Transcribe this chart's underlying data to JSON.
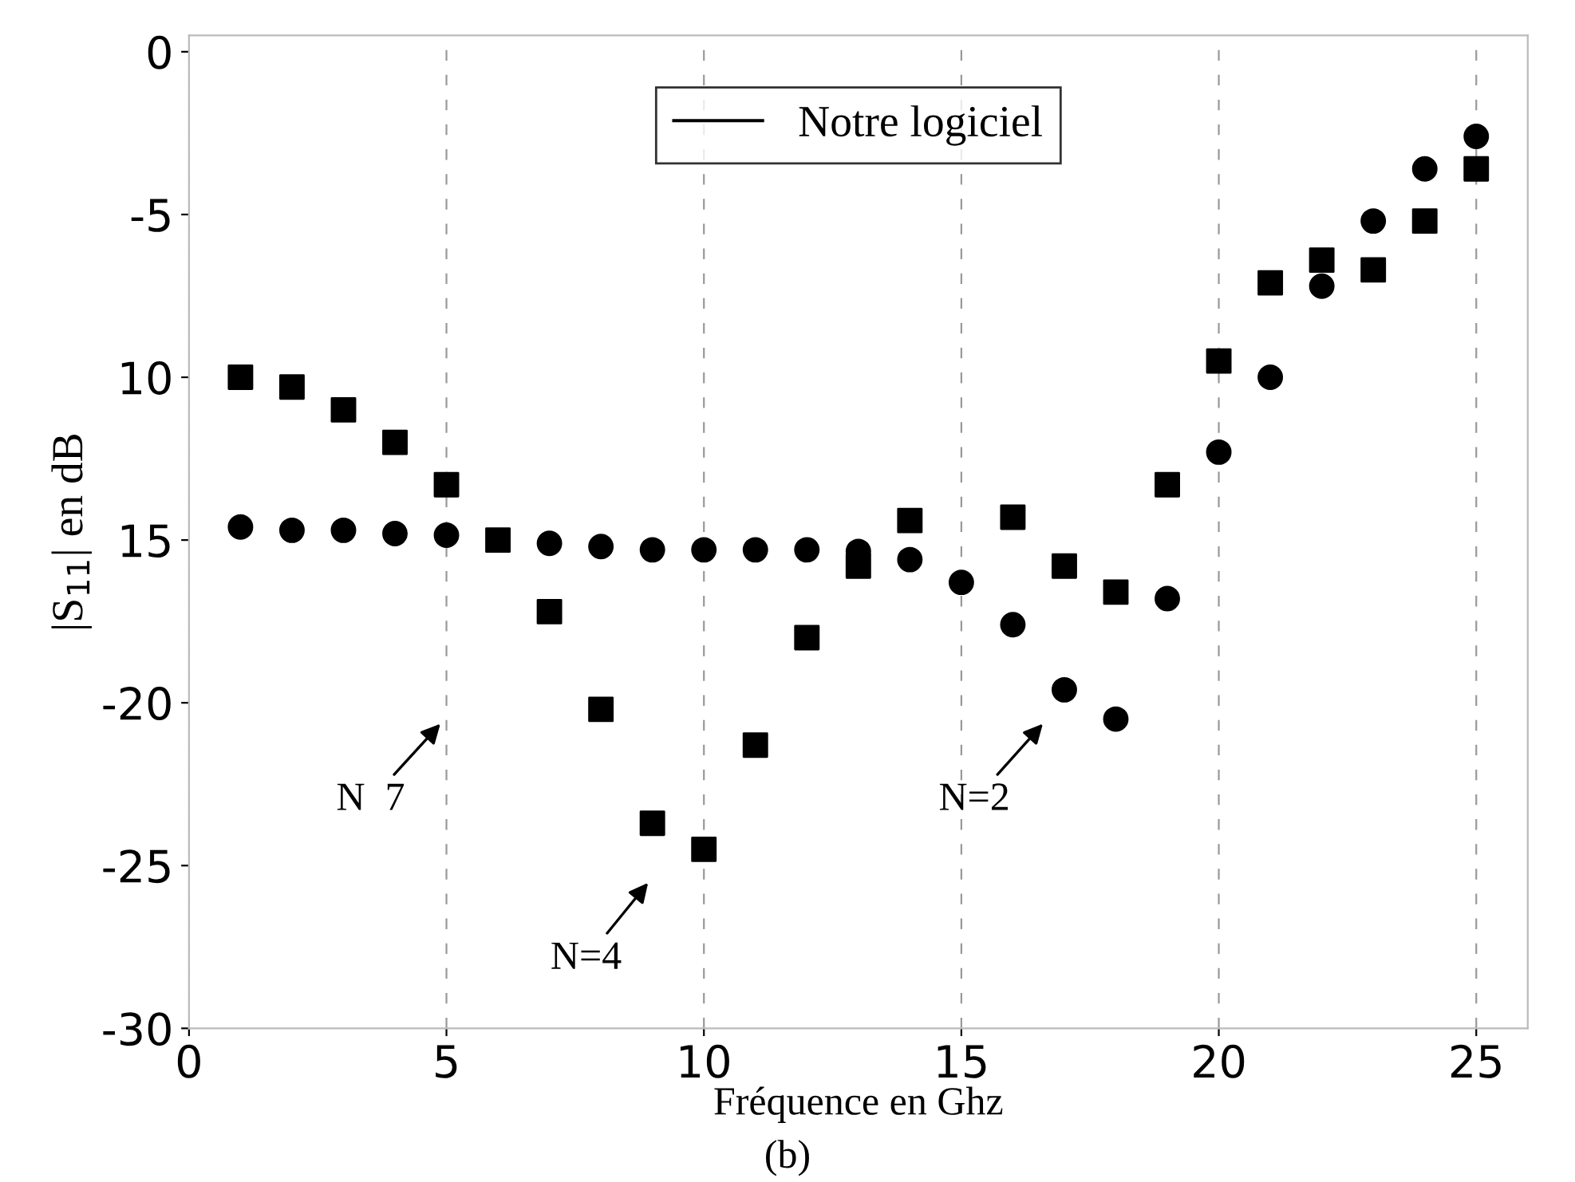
{
  "chart_data": {
    "type": "scatter",
    "xlabel": "Fréquence en Ghz",
    "ylabel": "|S$_{11}$| en dB",
    "x": [
      1,
      2,
      3,
      4,
      5,
      6,
      7,
      8,
      9,
      10,
      11,
      12,
      13,
      14,
      15,
      16,
      17,
      18,
      19,
      20,
      21,
      22,
      23,
      24,
      25
    ],
    "series": [
      {
        "marker": "circle",
        "color": "#000000",
        "values": [
          -14.6,
          -14.7,
          -14.7,
          -14.8,
          -14.85,
          null,
          -15.1,
          -15.2,
          -15.3,
          -15.3,
          -15.3,
          -15.3,
          -15.35,
          -15.6,
          -16.3,
          -17.6,
          -19.6,
          -20.5,
          -16.8,
          -12.3,
          -10.0,
          -7.2,
          -5.2,
          -3.6,
          -2.6
        ]
      },
      {
        "marker": "square",
        "color": "#000000",
        "values": [
          -10.0,
          -10.3,
          -11.0,
          -12.0,
          -13.3,
          -15.0,
          -17.2,
          -20.2,
          -23.7,
          -24.5,
          -21.3,
          -18.0,
          -15.8,
          -14.4,
          null,
          -14.3,
          -15.8,
          -16.6,
          -13.3,
          -9.5,
          -7.1,
          -6.4,
          -6.7,
          -5.2,
          -3.6
        ]
      },
      {
        "type": "line",
        "name": "Notre logiciel",
        "color": "#000000",
        "line_style": "solid",
        "values": [
          null,
          null,
          null,
          null,
          null,
          null,
          null,
          null,
          null,
          null,
          null,
          null,
          null,
          null,
          null,
          null,
          null,
          null,
          null,
          null,
          null,
          null,
          null,
          null,
          null
        ]
      }
    ],
    "xlim": [
      0,
      26
    ],
    "xticks": [
      0,
      5,
      10,
      15,
      20,
      25
    ],
    "ylim": [
      -30,
      0.5
    ],
    "yticks": [
      -30,
      -25,
      -20,
      {
        "value": -15,
        "label": "15"
      },
      {
        "value": -10,
        "label": "10"
      },
      -5,
      0
    ],
    "grid": "x",
    "legend": "top",
    "annotations": [
      "N  7",
      "N=4",
      "N=2",
      "(b)"
    ]
  }
}
